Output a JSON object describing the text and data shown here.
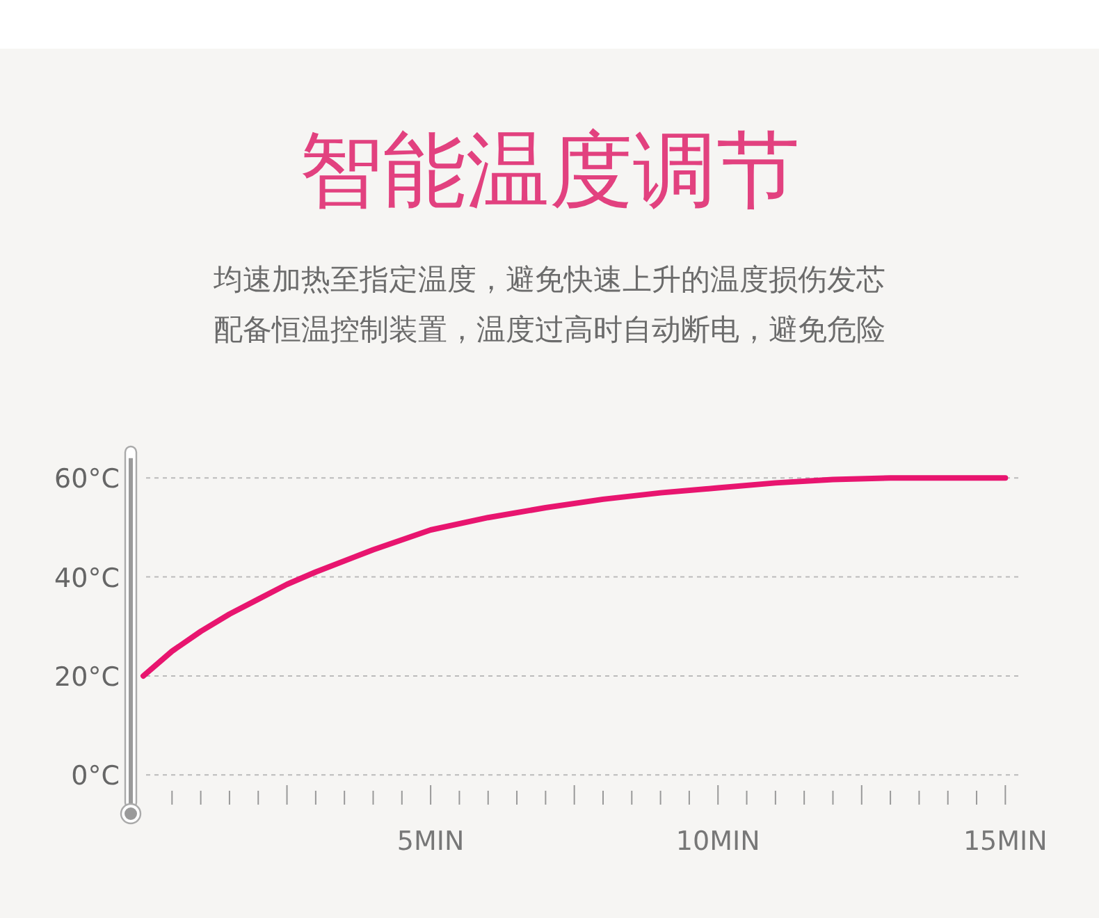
{
  "chart_data": {
    "type": "line",
    "title": "智能温度调节",
    "subtitle": "均速加热至指定温度，避免快速上升的温度损伤发芯",
    "annotations": [
      "配备恒温控制装置，温度过高时自动断电，避免危险"
    ],
    "x": [
      0,
      0.5,
      1,
      1.5,
      2,
      2.5,
      3,
      4,
      5,
      6,
      7,
      8,
      9,
      10,
      11,
      12,
      13,
      14,
      15
    ],
    "series": [
      {
        "color": "#e8156f",
        "values": [
          20,
          25,
          29,
          32.5,
          35.5,
          38.5,
          41,
          45.5,
          49.5,
          52,
          54,
          55.7,
          57,
          58,
          59,
          59.7,
          60,
          60,
          60
        ]
      }
    ],
    "xlim": [
      0,
      15.25
    ],
    "ylim": [
      -6,
      64
    ],
    "xticks": [
      {
        "value": 0.5,
        "label": null
      },
      {
        "value": 1,
        "label": null
      },
      {
        "value": 1.5,
        "label": null
      },
      {
        "value": 2,
        "label": null
      },
      {
        "value": 2.5,
        "label": null
      },
      {
        "value": 3,
        "label": null
      },
      {
        "value": 3.5,
        "label": null
      },
      {
        "value": 4,
        "label": null
      },
      {
        "value": 4.5,
        "label": null
      },
      {
        "value": 5,
        "label": "5MIN"
      },
      {
        "value": 5.5,
        "label": null
      },
      {
        "value": 6,
        "label": null
      },
      {
        "value": 6.5,
        "label": null
      },
      {
        "value": 7,
        "label": null
      },
      {
        "value": 7.5,
        "label": null
      },
      {
        "value": 8,
        "label": null
      },
      {
        "value": 8.5,
        "label": null
      },
      {
        "value": 9,
        "label": null
      },
      {
        "value": 9.5,
        "label": null
      },
      {
        "value": 10,
        "label": "10MIN"
      },
      {
        "value": 10.5,
        "label": null
      },
      {
        "value": 11,
        "label": null
      },
      {
        "value": 11.5,
        "label": null
      },
      {
        "value": 12,
        "label": null
      },
      {
        "value": 12.5,
        "label": null
      },
      {
        "value": 13,
        "label": null
      },
      {
        "value": 13.5,
        "label": null
      },
      {
        "value": 14,
        "label": null
      },
      {
        "value": 14.5,
        "label": null
      },
      {
        "value": 15,
        "label": "15MIN"
      }
    ],
    "yticks": [
      {
        "value": 0,
        "label": "0°C"
      },
      {
        "value": 20,
        "label": "20°C"
      },
      {
        "value": 40,
        "label": "40°C"
      },
      {
        "value": 60,
        "label": "60°C"
      }
    ],
    "grid": "y"
  }
}
